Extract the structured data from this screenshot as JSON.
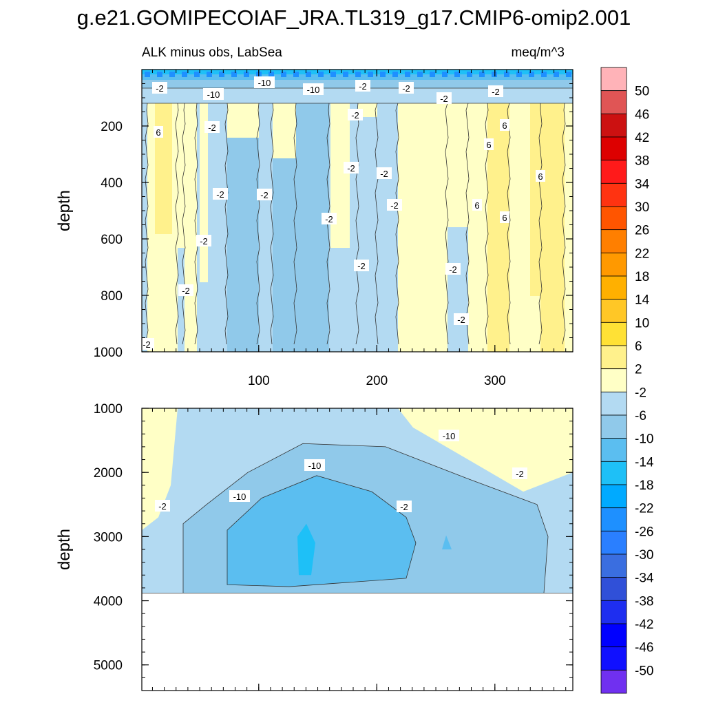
{
  "title": "g.e21.GOMIPECOIAF_JRA.TL319_g17.CMIP6-omip2.001",
  "subtitle_left": "ALK minus obs, LabSea",
  "subtitle_right": "meq/m^3",
  "chart_data": [
    {
      "type": "heatmap",
      "panel": "upper",
      "ylabel": "depth",
      "xlim": [
        1,
        366
      ],
      "ylim": [
        1000,
        0
      ],
      "xticks": [
        100,
        200,
        300
      ],
      "yticks": [
        200,
        400,
        600,
        800,
        1000
      ],
      "contour_labels": [
        "-2",
        "-10",
        "-10",
        "-10",
        "-2",
        "-2",
        "-2",
        "-2",
        "-2",
        "6",
        "-2",
        "-2",
        "6",
        "6",
        "-2",
        "-2",
        "-2",
        "-2",
        "-2",
        "6",
        "6",
        "6",
        "-2",
        "-2",
        "-2",
        "-2",
        "-2",
        "-2"
      ]
    },
    {
      "type": "heatmap",
      "panel": "lower",
      "ylabel": "depth",
      "xlim": [
        1,
        366
      ],
      "ylim": [
        5400,
        1000
      ],
      "yticks": [
        1000,
        2000,
        3000,
        4000,
        5000
      ],
      "contour_labels": [
        "-2",
        "-10",
        "-10",
        "-10",
        "-2",
        "-2"
      ]
    }
  ],
  "colorbar": {
    "labels": [
      "50",
      "46",
      "42",
      "38",
      "34",
      "30",
      "26",
      "22",
      "18",
      "14",
      "10",
      "6",
      "2",
      "-2",
      "-6",
      "-10",
      "-14",
      "-18",
      "-22",
      "-26",
      "-30",
      "-34",
      "-38",
      "-42",
      "-46",
      "-50"
    ],
    "colors": [
      "#ffb3b8",
      "#e05555",
      "#cc1111",
      "#dd0000",
      "#ff1a1a",
      "#ff3311",
      "#ff5500",
      "#ff7f00",
      "#ff9900",
      "#ffb000",
      "#ffc726",
      "#ffe135",
      "#fff18c",
      "#ffffc6",
      "#b3daf2",
      "#90c9ea",
      "#5bbef0",
      "#1ec0f7",
      "#00aaff",
      "#1e90ff",
      "#2a7fff",
      "#3a6ee0",
      "#3050d8",
      "#1e2ef0",
      "#0000ff",
      "#1010ff",
      "#7030f0"
    ]
  }
}
